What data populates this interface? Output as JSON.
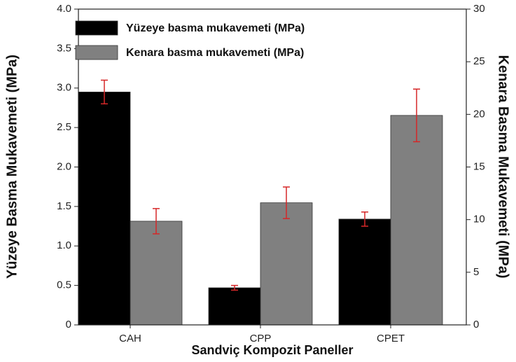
{
  "chart_data": {
    "type": "bar",
    "x_label": "Sandviç Kompozit Paneller",
    "y_label": "Yüzeye Basma Mukavemeti (MPa)",
    "y2_label": "Kenara Basma Mukavemeti (MPa)",
    "categories": [
      "CAH",
      "CPP",
      "CPET"
    ],
    "series": [
      {
        "name": "Yüzeye basma mukavemeti (MPa)",
        "color": "#000000",
        "values": [
          2.95,
          0.47,
          1.34
        ],
        "errors": [
          0.15,
          0.03,
          0.09
        ]
      },
      {
        "name": "Kenara basma mukavemeti (MPa)",
        "color": "#808080",
        "axis": "y2",
        "values": [
          9.85,
          11.6,
          19.9
        ],
        "errors": [
          1.2,
          1.5,
          2.5
        ]
      }
    ],
    "error_color": "#d62728",
    "ylim": [
      0,
      4.0
    ],
    "yticks": [
      0,
      0.5,
      {
        "value": 1,
        "label": "1.0"
      },
      1.5,
      {
        "value": 2,
        "label": "2.0"
      },
      2.5,
      {
        "value": 3,
        "label": "3.0"
      },
      3.5,
      {
        "value": 4,
        "label": "4.0"
      }
    ],
    "y2lim": [
      0,
      30
    ],
    "y2ticks": [
      0,
      5,
      10,
      15,
      20,
      25,
      30
    ],
    "legend": "upper left"
  }
}
